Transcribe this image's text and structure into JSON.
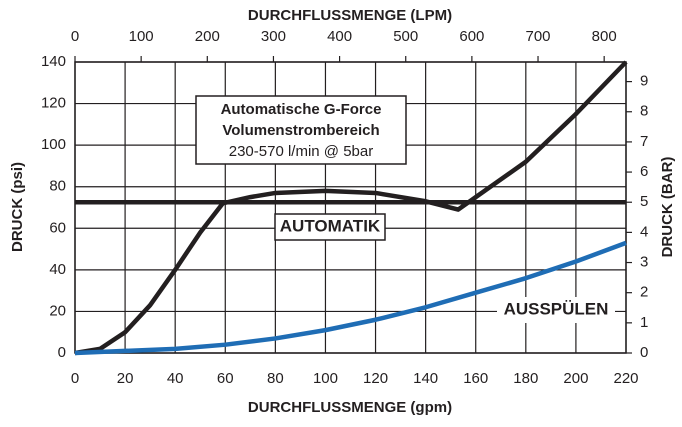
{
  "chart_data": {
    "type": "line",
    "xlabel": "DURCHFLUSSMENGE (gpm)",
    "x2label": "DURCHFLUSSMENGE (LPM)",
    "ylabel": "DRUCK (psi)",
    "y2label": "DRUCK (BAR)",
    "xlim": [
      0,
      220
    ],
    "xticks": [
      0,
      20,
      40,
      60,
      80,
      100,
      120,
      140,
      160,
      180,
      200,
      220
    ],
    "x2lim": [
      0,
      833
    ],
    "x2ticks": [
      0,
      100,
      200,
      300,
      400,
      500,
      600,
      700,
      800
    ],
    "ylim": [
      0,
      140
    ],
    "yticks": [
      0,
      20,
      40,
      60,
      80,
      100,
      120,
      140
    ],
    "y2lim": [
      0,
      9.65
    ],
    "y2ticks": [
      0,
      1,
      2,
      3,
      4,
      5,
      6,
      7,
      8,
      9
    ],
    "grid": true,
    "box_text": [
      "Automatische G-Force",
      "Volumenstrombereich",
      "230-570 l/min @ 5bar"
    ],
    "series": [
      {
        "color": "#231f20",
        "x": [
          0,
          10,
          20,
          30,
          40,
          50,
          59,
          70,
          80,
          100,
          120,
          140,
          153,
          160,
          180,
          200,
          220
        ],
        "values": [
          0,
          2,
          10,
          23,
          40,
          58,
          72,
          75,
          77,
          78,
          77,
          73,
          69,
          75,
          92,
          115,
          140
        ]
      },
      {
        "name": "AUTOMATIK",
        "color": "#231f20",
        "x": [
          0,
          220
        ],
        "values": [
          72.5,
          72.5
        ]
      },
      {
        "name": "AUSSPÜLEN",
        "color": "#1f6db5",
        "x": [
          0,
          20,
          40,
          60,
          80,
          100,
          120,
          140,
          160,
          180,
          200,
          220
        ],
        "values": [
          0,
          1,
          2,
          4,
          7,
          11,
          16,
          22,
          29,
          36,
          44,
          53
        ]
      }
    ]
  }
}
